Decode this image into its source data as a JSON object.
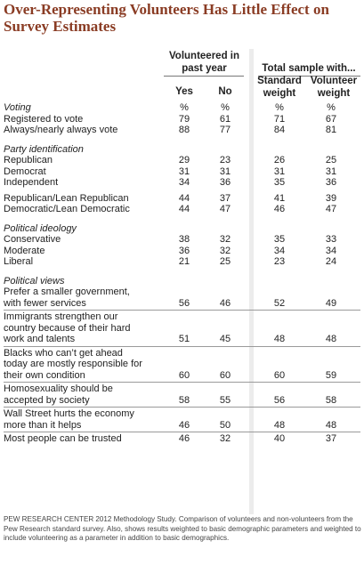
{
  "title": "Over-Representing Volunteers Has Little Effect on Survey Estimates",
  "headers": {
    "group1": "Volunteered in past year",
    "group2": "Total sample with...",
    "col_yes": "Yes",
    "col_no": "No",
    "col_standard": "Standard weight",
    "col_volunteer": "Volunteer weight",
    "pct": "%"
  },
  "rows": [
    {
      "type": "pct",
      "label": "Voting",
      "values": [
        "%",
        "%",
        "%",
        "%"
      ]
    },
    {
      "type": "data",
      "label": "Registered to vote",
      "values": [
        "79",
        "61",
        "71",
        "67"
      ]
    },
    {
      "type": "data",
      "label": "Always/nearly always vote",
      "values": [
        "88",
        "77",
        "84",
        "81"
      ]
    },
    {
      "type": "section",
      "label": "Party identification"
    },
    {
      "type": "data",
      "label": "Republican",
      "values": [
        "29",
        "23",
        "26",
        "25"
      ]
    },
    {
      "type": "data",
      "label": "Democrat",
      "values": [
        "31",
        "31",
        "31",
        "31"
      ]
    },
    {
      "type": "data",
      "label": "Independent",
      "values": [
        "34",
        "36",
        "35",
        "36"
      ]
    },
    {
      "type": "data",
      "label": "Republican/Lean Republican",
      "values": [
        "44",
        "37",
        "41",
        "39"
      ]
    },
    {
      "type": "data",
      "label": "Democratic/Lean Democratic",
      "values": [
        "44",
        "47",
        "46",
        "47"
      ]
    },
    {
      "type": "section",
      "label": "Political ideology"
    },
    {
      "type": "data",
      "label": "Conservative",
      "values": [
        "38",
        "32",
        "35",
        "33"
      ]
    },
    {
      "type": "data",
      "label": "Moderate",
      "values": [
        "36",
        "32",
        "34",
        "34"
      ]
    },
    {
      "type": "data",
      "label": "Liberal",
      "values": [
        "21",
        "25",
        "23",
        "24"
      ]
    },
    {
      "type": "section",
      "label": "Political views"
    },
    {
      "type": "data",
      "label": "Prefer a smaller government, with fewer services",
      "lines": [
        "Prefer a smaller government,",
        "with fewer services"
      ],
      "values": [
        "56",
        "46",
        "52",
        "49"
      ]
    },
    {
      "type": "data",
      "label": "Immigrants strengthen our country because of their hard work and talents",
      "lines": [
        "Immigrants strengthen our",
        "country because of their hard",
        "work and talents"
      ],
      "values": [
        "51",
        "45",
        "48",
        "48"
      ]
    },
    {
      "type": "data",
      "label": "Blacks who can't get ahead today are mostly responsible for their own condition",
      "lines": [
        "Blacks who can’t get ahead",
        "today are mostly responsible for",
        "their own condition"
      ],
      "values": [
        "60",
        "60",
        "60",
        "59"
      ]
    },
    {
      "type": "data",
      "label": "Homosexuality should be accepted by society",
      "lines": [
        "Homosexuality should be",
        "accepted by society"
      ],
      "values": [
        "58",
        "55",
        "56",
        "58"
      ]
    },
    {
      "type": "data",
      "label": "Wall Street hurts the economy more than it helps",
      "lines": [
        "Wall Street hurts the economy",
        "more than it helps"
      ],
      "values": [
        "46",
        "50",
        "48",
        "48"
      ]
    },
    {
      "type": "data",
      "label": "Most people can be trusted",
      "values": [
        "46",
        "32",
        "40",
        "37"
      ]
    }
  ],
  "footnote": "PEW RESEARCH CENTER 2012 Methodology Study. Comparison of volunteers and non-volunteers from the Pew Research standard survey. Also, shows results weighted to basic demographic parameters and weighted to include volunteering as a parameter in addition to basic demographics."
}
